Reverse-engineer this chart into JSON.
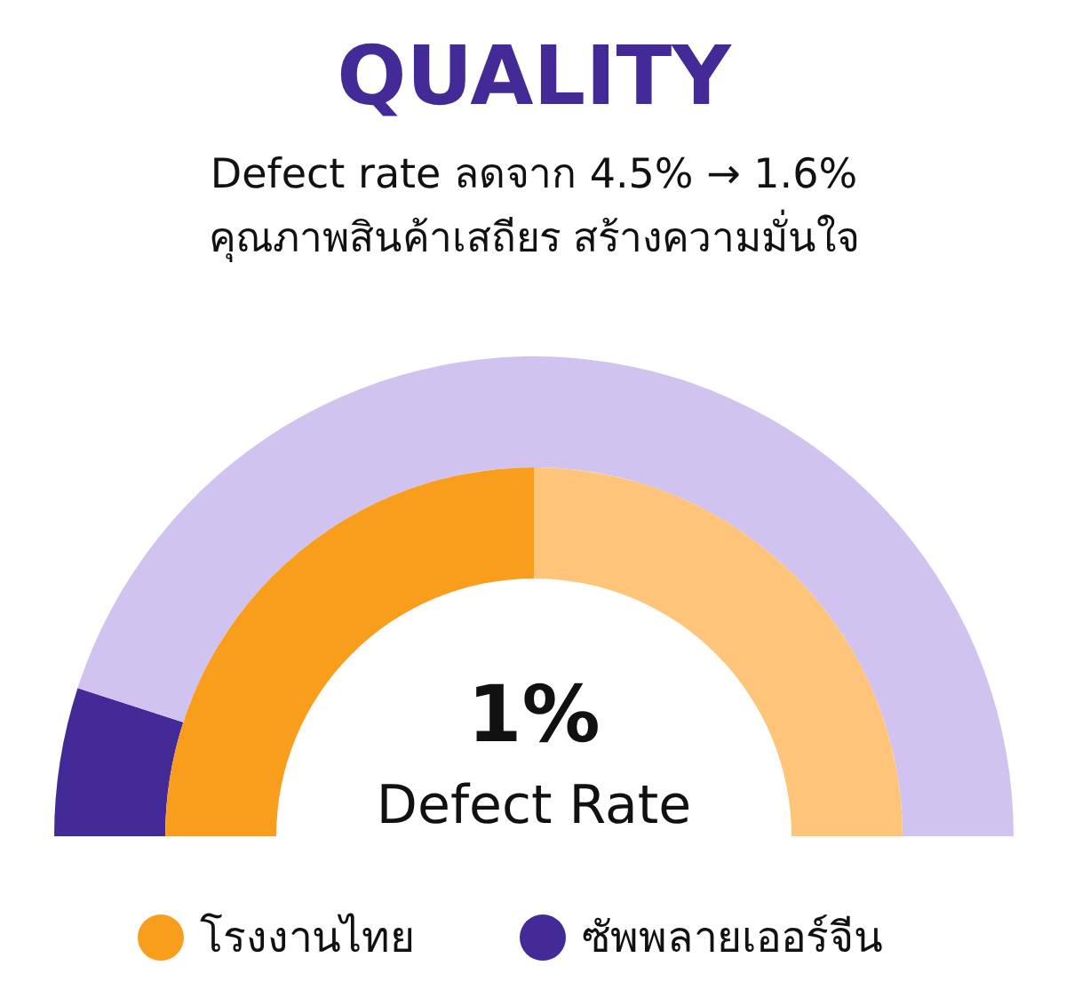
{
  "chart_data": {
    "type": "donut",
    "title": "QUALITY",
    "subtitle": "Defect rate ลดจาก 4.5% → 1.6%\nคุณภาพสินค้าเสถียร สร้างความมั่นใจ",
    "categories": [
      null,
      null
    ],
    "series": [
      {
        "name": "ซัพพลายเออร์จีน",
        "values": [
          10,
          90
        ],
        "colors": [
          "#432a96",
          "#d0c3f0"
        ]
      },
      {
        "name": "โรงงานไทย",
        "values": [
          50,
          50
        ],
        "colors": [
          "#f99d1c",
          "#fec47a"
        ]
      }
    ],
    "annotations": [
      "1%",
      "Defect Rate"
    ],
    "legend": "bottom"
  }
}
